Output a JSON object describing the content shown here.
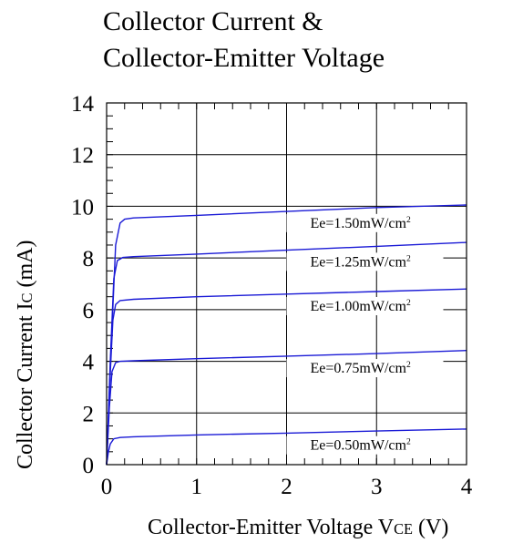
{
  "chart_data": {
    "type": "line",
    "title_lines": [
      "Collector Current &",
      "Collector-Emitter Voltage"
    ],
    "xlabel": {
      "pre": "Collector-Emitter Voltage V",
      "sub": "CE",
      "post": " (V)"
    },
    "ylabel": {
      "pre": "Collector Current I",
      "sub": "C",
      "post": " (mA)"
    },
    "xlim": [
      0,
      4
    ],
    "ylim": [
      0,
      14
    ],
    "x_ticks": [
      "0",
      "1",
      "2",
      "3",
      "4"
    ],
    "y_ticks": [
      "0",
      "2",
      "4",
      "6",
      "8",
      "10",
      "12",
      "14"
    ],
    "grid": true,
    "line_color": "#1a1ad6",
    "series": [
      {
        "name": "Ee=1.50mW/cm",
        "unit_sup": "2",
        "points": [
          [
            0,
            0
          ],
          [
            0.05,
            4.5
          ],
          [
            0.1,
            8.5
          ],
          [
            0.15,
            9.35
          ],
          [
            0.2,
            9.5
          ],
          [
            0.3,
            9.55
          ],
          [
            1,
            9.65
          ],
          [
            2,
            9.8
          ],
          [
            3,
            9.95
          ],
          [
            4,
            10.05
          ]
        ]
      },
      {
        "name": "Ee=1.25mW/cm",
        "unit_sup": "2",
        "points": [
          [
            0,
            0
          ],
          [
            0.04,
            4.0
          ],
          [
            0.08,
            7.2
          ],
          [
            0.12,
            7.9
          ],
          [
            0.18,
            8.02
          ],
          [
            0.3,
            8.05
          ],
          [
            1,
            8.15
          ],
          [
            2,
            8.3
          ],
          [
            3,
            8.45
          ],
          [
            4,
            8.6
          ]
        ]
      },
      {
        "name": "Ee=1.00mW/cm",
        "unit_sup": "2",
        "points": [
          [
            0,
            0
          ],
          [
            0.035,
            3.2
          ],
          [
            0.07,
            5.6
          ],
          [
            0.1,
            6.2
          ],
          [
            0.15,
            6.35
          ],
          [
            0.3,
            6.4
          ],
          [
            1,
            6.5
          ],
          [
            2,
            6.6
          ],
          [
            3,
            6.7
          ],
          [
            4,
            6.8
          ]
        ]
      },
      {
        "name": "Ee=0.75mW/cm",
        "unit_sup": "2",
        "points": [
          [
            0,
            0
          ],
          [
            0.03,
            2.2
          ],
          [
            0.06,
            3.6
          ],
          [
            0.1,
            3.95
          ],
          [
            0.15,
            4.0
          ],
          [
            0.3,
            4.02
          ],
          [
            1,
            4.1
          ],
          [
            2,
            4.2
          ],
          [
            3,
            4.3
          ],
          [
            4,
            4.42
          ]
        ]
      },
      {
        "name": "Ee=0.50mW/cm",
        "unit_sup": "2",
        "points": [
          [
            0,
            0
          ],
          [
            0.02,
            0.5
          ],
          [
            0.04,
            0.8
          ],
          [
            0.08,
            1.0
          ],
          [
            0.15,
            1.05
          ],
          [
            0.3,
            1.08
          ],
          [
            1,
            1.15
          ],
          [
            2,
            1.22
          ],
          [
            3,
            1.3
          ],
          [
            4,
            1.38
          ]
        ]
      }
    ]
  }
}
